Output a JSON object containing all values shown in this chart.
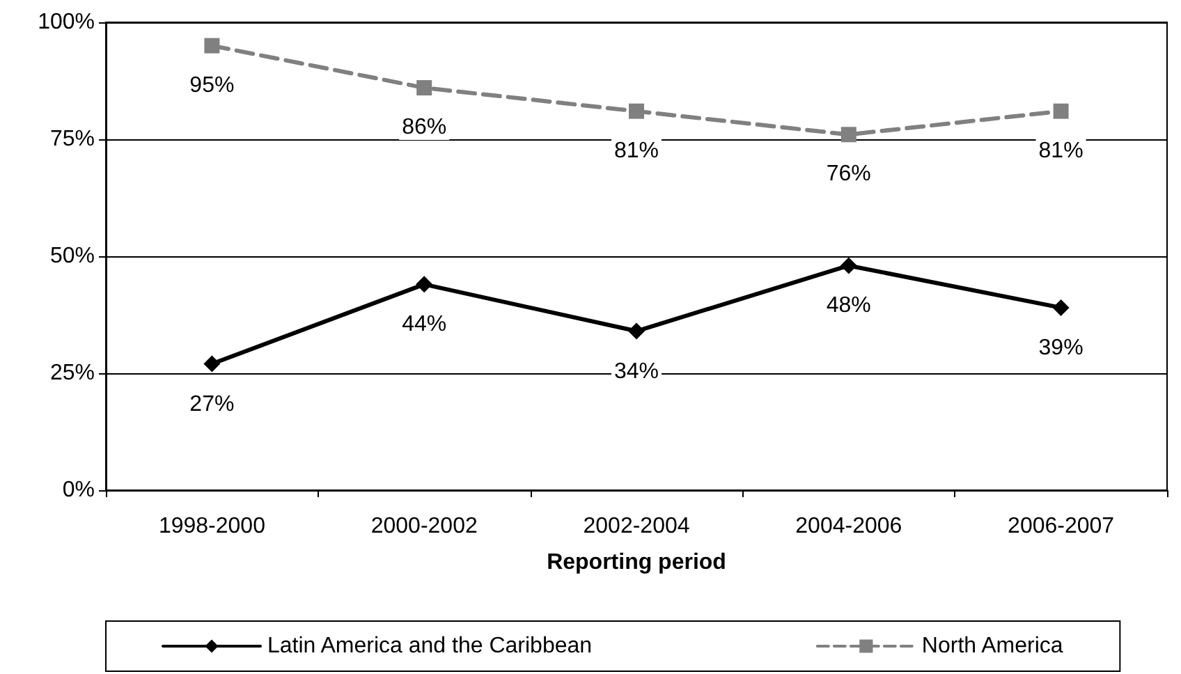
{
  "chart_data": {
    "type": "line",
    "xlabel": "Reporting period",
    "categories": [
      "1998-2000",
      "2000-2002",
      "2002-2004",
      "2004-2006",
      "2006-2007"
    ],
    "series": [
      {
        "name": "Latin America and the Caribbean",
        "color": "#000000",
        "values": [
          27,
          44,
          34,
          48,
          39
        ],
        "value_labels": [
          "27%",
          "44%",
          "34%",
          "48%",
          "39%"
        ],
        "marker": "diamond",
        "line_style": "solid"
      },
      {
        "name": "North America",
        "color": "#808080",
        "values": [
          95,
          86,
          81,
          76,
          81
        ],
        "value_labels": [
          "95%",
          "86%",
          "81%",
          "76%",
          "81%"
        ],
        "marker": "square",
        "line_style": "dashed"
      }
    ],
    "ylim": [
      0,
      100
    ],
    "yticks": [
      {
        "value": 0,
        "label": "0%"
      },
      {
        "value": 25,
        "label": "25%"
      },
      {
        "value": 50,
        "label": "50%"
      },
      {
        "value": 75,
        "label": "75%"
      },
      {
        "value": 100,
        "label": "100%"
      }
    ],
    "grid": "y",
    "legend": "bottom"
  }
}
